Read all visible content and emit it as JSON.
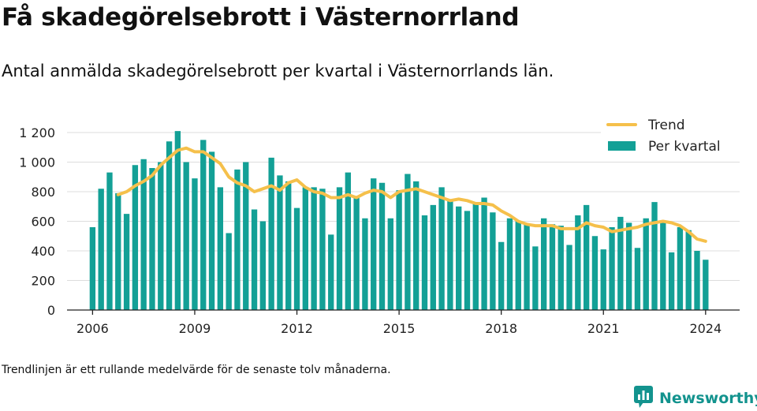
{
  "title": "Få skadegörelsebrott i Västernorrland",
  "subtitle": "Antal anmälda skadegörelsebrott per kvartal i Västernorrlands län.",
  "footnote": "Trendlinjen är ett rullande medelvärde för de senaste tolv månaderna.",
  "brand": {
    "name": "Newsworthy",
    "icon": "newsworthy-logo-icon",
    "color": "#13938e"
  },
  "colors": {
    "bar": "#13a096",
    "trend": "#f5c04b",
    "grid": "#dddddd",
    "axis": "#222222"
  },
  "chart_data": {
    "type": "bar",
    "title": "",
    "xlabel": "",
    "ylabel": "",
    "ylim": [
      0,
      1200
    ],
    "yticks": [
      0,
      200,
      400,
      600,
      800,
      1000,
      1200
    ],
    "ytick_labels": [
      "0",
      "200",
      "400",
      "600",
      "800",
      "1 000",
      "1 200"
    ],
    "xticks": [
      2006,
      2009,
      2012,
      2015,
      2018,
      2021,
      2024
    ],
    "xtick_labels": [
      "2006",
      "2009",
      "2012",
      "2015",
      "2018",
      "2021",
      "2024"
    ],
    "x_range": [
      2005.25,
      2025.0
    ],
    "grid": true,
    "legend_position": "top-right",
    "series": [
      {
        "name": "Per kvartal",
        "type": "bar",
        "x": [
          2006.0,
          2006.25,
          2006.5,
          2006.75,
          2007.0,
          2007.25,
          2007.5,
          2007.75,
          2008.0,
          2008.25,
          2008.5,
          2008.75,
          2009.0,
          2009.25,
          2009.5,
          2009.75,
          2010.0,
          2010.25,
          2010.5,
          2010.75,
          2011.0,
          2011.25,
          2011.5,
          2011.75,
          2012.0,
          2012.25,
          2012.5,
          2012.75,
          2013.0,
          2013.25,
          2013.5,
          2013.75,
          2014.0,
          2014.25,
          2014.5,
          2014.75,
          2015.0,
          2015.25,
          2015.5,
          2015.75,
          2016.0,
          2016.25,
          2016.5,
          2016.75,
          2017.0,
          2017.25,
          2017.5,
          2017.75,
          2018.0,
          2018.25,
          2018.5,
          2018.75,
          2019.0,
          2019.25,
          2019.5,
          2019.75,
          2020.0,
          2020.25,
          2020.5,
          2020.75,
          2021.0,
          2021.25,
          2021.5,
          2021.75,
          2022.0,
          2022.25,
          2022.5,
          2022.75,
          2023.0,
          2023.25,
          2023.5,
          2023.75,
          2024.0
        ],
        "values": [
          560,
          820,
          930,
          790,
          650,
          980,
          1020,
          960,
          1000,
          1140,
          1210,
          1000,
          890,
          1150,
          1070,
          830,
          520,
          950,
          1000,
          680,
          600,
          1030,
          910,
          870,
          690,
          830,
          830,
          820,
          510,
          830,
          930,
          770,
          620,
          890,
          860,
          620,
          810,
          920,
          870,
          640,
          710,
          830,
          740,
          700,
          670,
          730,
          760,
          660,
          460,
          620,
          600,
          580,
          430,
          620,
          580,
          570,
          440,
          640,
          710,
          500,
          410,
          560,
          630,
          590,
          420,
          620,
          730,
          600,
          390,
          560,
          540,
          400,
          340
        ]
      },
      {
        "name": "Trend",
        "type": "line",
        "x": [
          2006.75,
          2007.0,
          2007.25,
          2007.5,
          2007.75,
          2008.0,
          2008.25,
          2008.5,
          2008.75,
          2009.0,
          2009.25,
          2009.5,
          2009.75,
          2010.0,
          2010.25,
          2010.5,
          2010.75,
          2011.0,
          2011.25,
          2011.5,
          2011.75,
          2012.0,
          2012.25,
          2012.5,
          2012.75,
          2013.0,
          2013.25,
          2013.5,
          2013.75,
          2014.0,
          2014.25,
          2014.5,
          2014.75,
          2015.0,
          2015.25,
          2015.5,
          2015.75,
          2016.0,
          2016.25,
          2016.5,
          2016.75,
          2017.0,
          2017.25,
          2017.5,
          2017.75,
          2018.0,
          2018.25,
          2018.5,
          2018.75,
          2019.0,
          2019.25,
          2019.5,
          2019.75,
          2020.0,
          2020.25,
          2020.5,
          2020.75,
          2021.0,
          2021.25,
          2021.5,
          2021.75,
          2022.0,
          2022.25,
          2022.5,
          2022.75,
          2023.0,
          2023.25,
          2023.5,
          2023.75,
          2024.0
        ],
        "values": [
          780,
          800,
          840,
          870,
          910,
          980,
          1030,
          1080,
          1095,
          1070,
          1070,
          1030,
          990,
          900,
          860,
          840,
          800,
          820,
          840,
          810,
          860,
          880,
          830,
          800,
          790,
          760,
          760,
          780,
          760,
          790,
          810,
          800,
          760,
          800,
          810,
          820,
          800,
          780,
          760,
          740,
          750,
          740,
          720,
          720,
          710,
          670,
          640,
          600,
          580,
          570,
          570,
          570,
          550,
          550,
          550,
          590,
          570,
          560,
          530,
          540,
          550,
          560,
          580,
          590,
          600,
          590,
          570,
          530,
          480,
          465
        ]
      }
    ]
  }
}
